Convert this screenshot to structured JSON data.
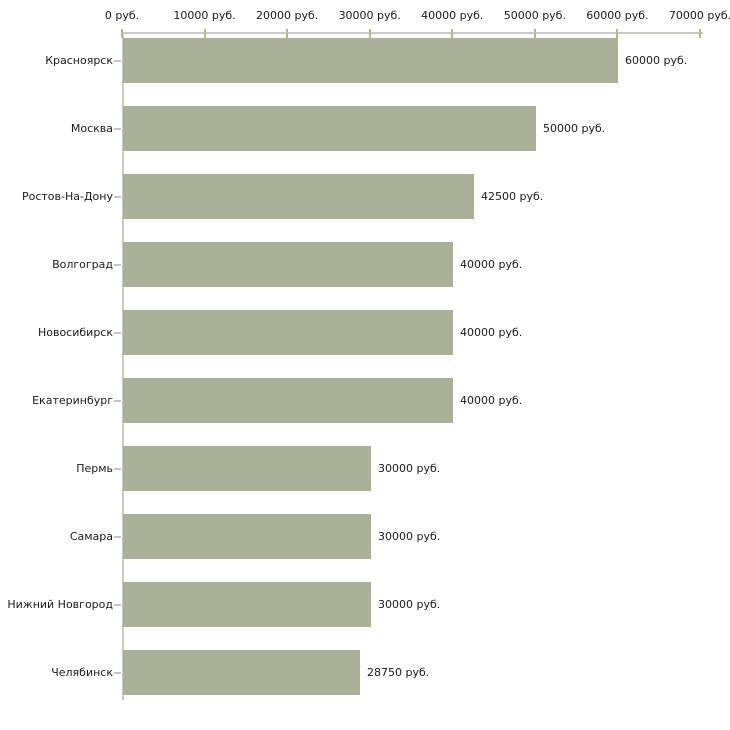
{
  "colors": {
    "background": "#ffffff",
    "bar": "#abb199",
    "axis_line": "#c8c8c4",
    "axis_tick": "#b8b88c",
    "category_tick": "#c6c6ba",
    "text": "#1a1a1a"
  },
  "chart_data": {
    "type": "bar",
    "orientation": "horizontal",
    "title": "",
    "xlabel": "",
    "ylabel": "",
    "grid": false,
    "legend": false,
    "x_axis": {
      "position": "top",
      "min": 0,
      "max": 70000,
      "ticks": [
        0,
        10000,
        20000,
        30000,
        40000,
        50000,
        60000,
        70000
      ],
      "tick_labels": [
        "0 руб.",
        "10000 руб.",
        "20000 руб.",
        "30000 руб.",
        "40000 руб.",
        "50000 руб.",
        "60000 руб.",
        "70000 руб."
      ]
    },
    "categories": [
      "Красноярск",
      "Москва",
      "Ростов-На-Дону",
      "Волгоград",
      "Новосибирск",
      "Екатеринбург",
      "Пермь",
      "Самара",
      "Нижний Новгород",
      "Челябинск"
    ],
    "values": [
      60000,
      50000,
      42500,
      40000,
      40000,
      40000,
      30000,
      30000,
      30000,
      28750
    ],
    "value_labels": [
      "60000 руб.",
      "50000 руб.",
      "42500 руб.",
      "40000 руб.",
      "40000 руб.",
      "40000 руб.",
      "30000 руб.",
      "30000 руб.",
      "30000 руб.",
      "28750 руб."
    ]
  }
}
